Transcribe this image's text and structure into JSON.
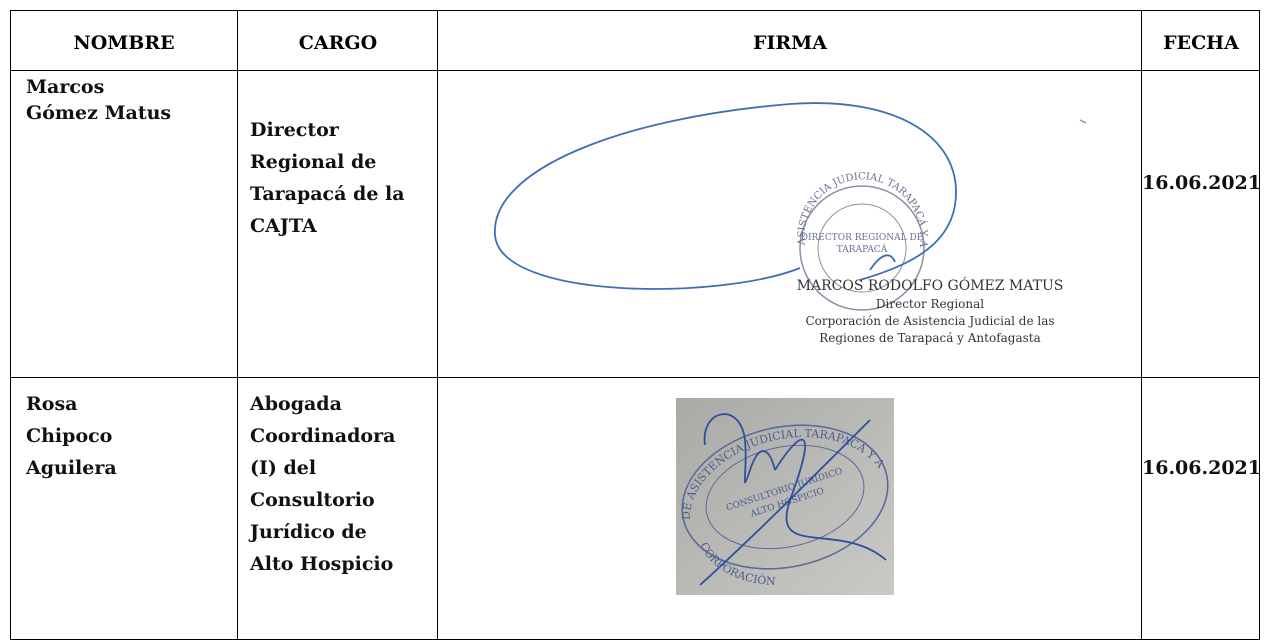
{
  "table": {
    "headers": [
      "NOMBRE",
      "CARGO",
      "FIRMA",
      "FECHA"
    ],
    "rows": [
      {
        "nombre": [
          "Marcos",
          "Gómez Matus"
        ],
        "cargo": [
          "Director",
          "Regional de",
          "Tarapacá de la",
          "CAJTA"
        ],
        "firma": {
          "stamp_ring": "ASISTENCIA JUDICIAL TARAPACÁ Y ANTOFAGASTA",
          "stamp_center": [
            "DIRECTOR REGIONAL DE",
            "TARAPACÁ"
          ],
          "printed": [
            "MARCOS RODOLFO GÓMEZ MATUS",
            "Director Regional",
            "Corporación de Asistencia Judicial de las",
            "Regiones de Tarapacá y Antofagasta"
          ]
        },
        "fecha": "16.06.2021"
      },
      {
        "nombre": [
          "Rosa",
          "Chipoco",
          "Aguilera"
        ],
        "cargo": [
          "Abogada",
          "Coordinadora",
          "(I) del",
          "Consultorio",
          "Jurídico de",
          "Alto Hospicio"
        ],
        "firma": {
          "stamp_ring": "DE ASISTENCIA JUDICIAL TARAPACÁ Y ANTOFAGASTA",
          "stamp_bottom": "CORPORACIÓN",
          "stamp_center": [
            "CONSULTORIO JURÍDICO",
            "ALTO HOSPICIO"
          ]
        },
        "fecha": "16.06.2021"
      }
    ]
  }
}
